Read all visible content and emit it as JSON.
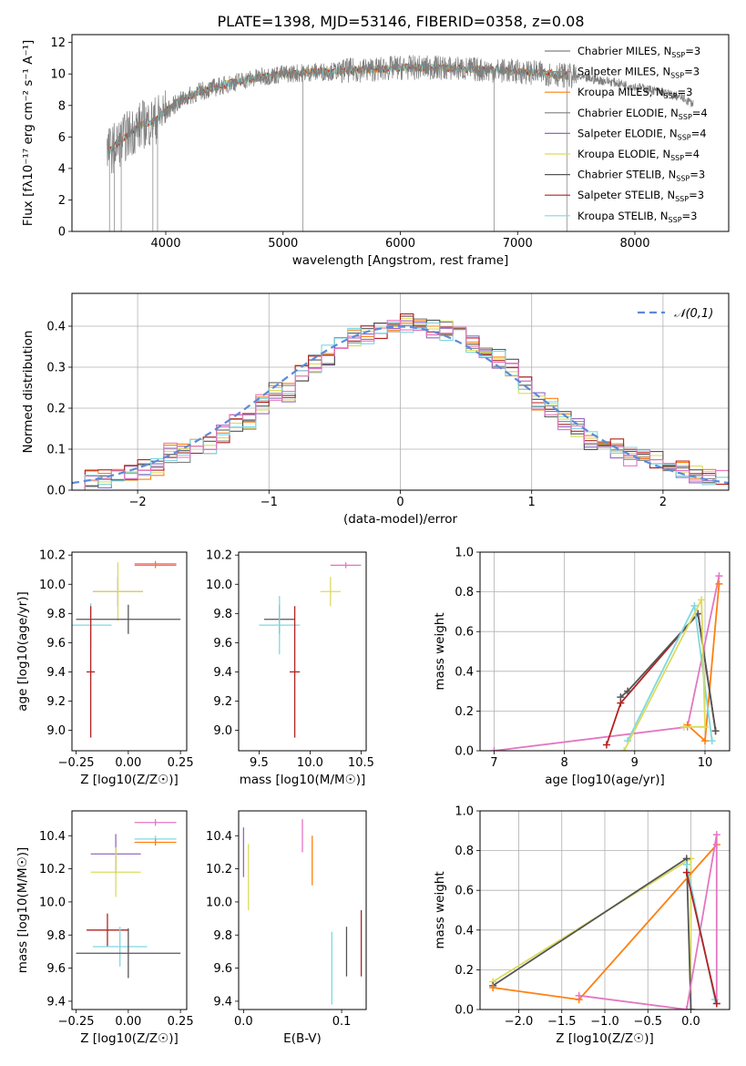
{
  "figure": {
    "title": "PLATE=1398, MJD=53146, FIBERID=0358, z=0.08"
  },
  "colors": {
    "Chabrier MILES": "#808080",
    "Salpeter MILES": "#8c8c8c",
    "Kroupa MILES": "#ff7f0e",
    "Chabrier ELODIE": "#7f7f7f",
    "Salpeter ELODIE": "#9467bd",
    "Kroupa ELODIE": "#dbdb5d",
    "Chabrier STELIB": "#555555",
    "Salpeter STELIB": "#b22222",
    "Kroupa STELIB": "#7fd8e0",
    "Pink": "#e377c2",
    "Gauss": "#5b8bd9"
  },
  "chart_data": [
    {
      "type": "line",
      "title": "PLATE=1398, MJD=53146, FIBERID=0358, z=0.08",
      "xlabel": "wavelength [Angstrom, rest frame]",
      "ylabel": "Flux [fλ10⁻¹⁷ erg cm⁻² s⁻¹ A⁻¹]",
      "xlim": [
        3200,
        8800
      ],
      "ylim": [
        0,
        12.5
      ],
      "xticks": [
        "4000",
        "5000",
        "6000",
        "7000",
        "8000"
      ],
      "yticks": [
        "0",
        "2",
        "4",
        "6",
        "8",
        "10",
        "12"
      ],
      "grid": false,
      "legend_position": "right",
      "continuum_x": [
        3500,
        3600,
        3700,
        3800,
        3900,
        4000,
        4100,
        4200,
        4300,
        4400,
        4600,
        4800,
        5000,
        5200,
        5500,
        5800,
        6000,
        6300,
        6600,
        6900,
        7100,
        7300,
        7420,
        7600,
        7800,
        8000,
        8200,
        8400,
        8500
      ],
      "continuum_y": [
        5.0,
        5.6,
        6.3,
        6.8,
        7.0,
        7.6,
        8.2,
        8.6,
        8.9,
        9.1,
        9.5,
        9.8,
        10.0,
        10.1,
        10.2,
        10.3,
        10.4,
        10.4,
        10.3,
        10.2,
        10.1,
        10.0,
        9.9,
        9.7,
        9.5,
        9.2,
        8.9,
        8.5,
        8.1
      ],
      "series": [
        {
          "name": "Chabrier MILES, N_SSP=3"
        },
        {
          "name": "Salpeter MILES, N_SSP=3"
        },
        {
          "name": "Kroupa MILES, N_SSP=3"
        },
        {
          "name": "Chabrier ELODIE, N_SSP=4"
        },
        {
          "name": "Salpeter ELODIE, N_SSP=4"
        },
        {
          "name": "Kroupa ELODIE, N_SSP=4"
        },
        {
          "name": "Chabrier STELIB, N_SSP=3"
        },
        {
          "name": "Salpeter STELIB, N_SSP=3"
        },
        {
          "name": "Kroupa STELIB, N_SSP=3"
        }
      ]
    },
    {
      "type": "bar",
      "xlabel": "(data-model)/error",
      "ylabel": "Normed distribution",
      "xlim": [
        -2.5,
        2.5
      ],
      "ylim": [
        0,
        0.48
      ],
      "xticks": [
        "−2",
        "−1",
        "0",
        "1",
        "2"
      ],
      "yticks": [
        "0.0",
        "0.1",
        "0.2",
        "0.3",
        "0.4"
      ],
      "grid": true,
      "legend_position": "top-right",
      "bin_edges": [
        -2.5,
        -2.4,
        -2.3,
        -2.2,
        -2.1,
        -2.0,
        -1.9,
        -1.8,
        -1.7,
        -1.6,
        -1.5,
        -1.4,
        -1.3,
        -1.2,
        -1.1,
        -1.0,
        -0.9,
        -0.8,
        -0.7,
        -0.6,
        -0.5,
        -0.4,
        -0.3,
        -0.2,
        -0.1,
        0.0,
        0.1,
        0.2,
        0.3,
        0.4,
        0.5,
        0.6,
        0.7,
        0.8,
        0.9,
        1.0,
        1.1,
        1.2,
        1.3,
        1.4,
        1.5,
        1.6,
        1.7,
        1.8,
        1.9,
        2.0,
        2.1,
        2.2,
        2.3,
        2.4,
        2.5
      ],
      "histogram_values": [
        0.02,
        0.03,
        0.03,
        0.04,
        0.04,
        0.05,
        0.06,
        0.09,
        0.09,
        0.1,
        0.11,
        0.14,
        0.16,
        0.17,
        0.21,
        0.24,
        0.24,
        0.28,
        0.31,
        0.33,
        0.35,
        0.37,
        0.38,
        0.39,
        0.4,
        0.41,
        0.4,
        0.39,
        0.39,
        0.38,
        0.36,
        0.34,
        0.32,
        0.3,
        0.26,
        0.22,
        0.2,
        0.17,
        0.15,
        0.12,
        0.11,
        0.1,
        0.08,
        0.08,
        0.07,
        0.06,
        0.05,
        0.04,
        0.03,
        0.03
      ],
      "series": [
        {
          "name": "N(0,1)",
          "description": "Gaussian, mean 0, sigma 1"
        }
      ]
    },
    {
      "type": "scatter",
      "xlabel": "Z [log10(Z/Z☉)]",
      "ylabel": "age  [log10(age/yr)]",
      "xlim": [
        -0.27,
        0.28
      ],
      "ylim": [
        8.86,
        10.22
      ],
      "xticks": [
        "−0.25",
        "0.00",
        "0.25"
      ],
      "yticks": [
        "9.0",
        "9.2",
        "9.4",
        "9.6",
        "9.8",
        "10.0",
        "10.2"
      ],
      "points": [
        {
          "x": 0.13,
          "y": 10.14,
          "xerr": 0.1,
          "yerr": 0.02,
          "color": "Pink"
        },
        {
          "x": 0.13,
          "y": 10.13,
          "xerr": 0.1,
          "yerr": 0.02,
          "color": "Kroupa MILES"
        },
        {
          "x": -0.05,
          "y": 9.95,
          "xerr": 0.12,
          "yerr": 0.1,
          "color": "Salpeter ELODIE"
        },
        {
          "x": -0.05,
          "y": 9.95,
          "xerr": 0.12,
          "yerr": 0.2,
          "color": "Kroupa ELODIE"
        },
        {
          "x": 0.0,
          "y": 9.76,
          "xerr": 0.25,
          "yerr": 0.1,
          "color": "Chabrier STELIB"
        },
        {
          "x": -0.18,
          "y": 9.72,
          "xerr": 0.1,
          "yerr": 0.15,
          "color": "Kroupa STELIB"
        },
        {
          "x": -0.18,
          "y": 9.4,
          "xerr": 0.02,
          "yerr": 0.45,
          "color": "Salpeter STELIB"
        }
      ]
    },
    {
      "type": "scatter",
      "xlabel": "mass [log10(M/M☉)]",
      "ylabel": "",
      "xlim": [
        9.3,
        10.55
      ],
      "ylim": [
        8.86,
        10.22
      ],
      "xticks": [
        "9.5",
        "10.0",
        "10.5"
      ],
      "yticks": [
        "9.0",
        "9.2",
        "9.4",
        "9.6",
        "9.8",
        "10.0",
        "10.2"
      ],
      "points": [
        {
          "x": 10.35,
          "y": 10.13,
          "xerr": 0.15,
          "yerr": 0.02,
          "color": "Pink"
        },
        {
          "x": 10.2,
          "y": 9.95,
          "xerr": 0.1,
          "yerr": 0.1,
          "color": "Kroupa ELODIE"
        },
        {
          "x": 9.7,
          "y": 9.76,
          "xerr": 0.15,
          "yerr": 0.1,
          "color": "Chabrier STELIB"
        },
        {
          "x": 9.7,
          "y": 9.72,
          "xerr": 0.2,
          "yerr": 0.2,
          "color": "Kroupa STELIB"
        },
        {
          "x": 9.85,
          "y": 9.4,
          "xerr": 0.05,
          "yerr": 0.45,
          "color": "Salpeter STELIB"
        }
      ]
    },
    {
      "type": "line",
      "xlabel": "age  [log10(age/yr)]",
      "ylabel": "mass weight",
      "xlim": [
        6.8,
        10.35
      ],
      "ylim": [
        0,
        1.0
      ],
      "xticks": [
        "7",
        "8",
        "9",
        "10"
      ],
      "yticks": [
        "0.0",
        "0.2",
        "0.4",
        "0.6",
        "0.8",
        "1.0"
      ],
      "grid": true,
      "series": [
        {
          "color": "Pink",
          "x": [
            7.0,
            9.75,
            10.2
          ],
          "y": [
            0.0,
            0.12,
            0.88
          ]
        },
        {
          "color": "Kroupa MILES",
          "x": [
            9.75,
            10.0,
            10.2
          ],
          "y": [
            0.13,
            0.05,
            0.84
          ]
        },
        {
          "color": "Salpeter STELIB",
          "x": [
            8.6,
            8.8,
            9.9,
            10.15
          ],
          "y": [
            0.03,
            0.24,
            0.69,
            0.1
          ]
        },
        {
          "color": "Chabrier STELIB",
          "x": [
            8.8,
            8.9,
            9.9,
            10.15
          ],
          "y": [
            0.27,
            0.3,
            0.69,
            0.1
          ]
        },
        {
          "color": "Kroupa STELIB",
          "x": [
            8.9,
            9.85,
            10.1
          ],
          "y": [
            0.05,
            0.73,
            0.05
          ]
        },
        {
          "color": "Kroupa ELODIE",
          "x": [
            8.85,
            9.95,
            10.0,
            9.7
          ],
          "y": [
            0.0,
            0.76,
            0.12,
            0.12
          ]
        }
      ]
    },
    {
      "type": "scatter",
      "xlabel": "Z [log10(Z/Z☉)]",
      "ylabel": "mass [log10(M/M☉)]",
      "xlim": [
        -0.27,
        0.28
      ],
      "ylim": [
        9.35,
        10.55
      ],
      "xticks": [
        "−0.25",
        "0.00",
        "0.25"
      ],
      "yticks": [
        "9.4",
        "9.6",
        "9.8",
        "10.0",
        "10.2",
        "10.4"
      ],
      "points": [
        {
          "x": 0.13,
          "y": 10.48,
          "xerr": 0.1,
          "yerr": 0.02,
          "color": "Pink"
        },
        {
          "x": 0.13,
          "y": 10.38,
          "xerr": 0.1,
          "yerr": 0.02,
          "color": "Kroupa STELIB"
        },
        {
          "x": 0.13,
          "y": 10.36,
          "xerr": 0.1,
          "yerr": 0.02,
          "color": "Kroupa MILES"
        },
        {
          "x": -0.06,
          "y": 10.29,
          "xerr": 0.12,
          "yerr": 0.12,
          "color": "Salpeter ELODIE"
        },
        {
          "x": -0.06,
          "y": 10.18,
          "xerr": 0.12,
          "yerr": 0.15,
          "color": "Kroupa ELODIE"
        },
        {
          "x": -0.1,
          "y": 9.83,
          "xerr": 0.1,
          "yerr": 0.1,
          "color": "Salpeter STELIB"
        },
        {
          "x": -0.04,
          "y": 9.73,
          "xerr": 0.13,
          "yerr": 0.12,
          "color": "Kroupa STELIB"
        },
        {
          "x": 0.0,
          "y": 9.69,
          "xerr": 0.25,
          "yerr": 0.15,
          "color": "Chabrier STELIB"
        }
      ]
    },
    {
      "type": "scatter",
      "xlabel": "E(B-V)",
      "ylabel": "",
      "xlim": [
        -0.005,
        0.125
      ],
      "ylim": [
        9.35,
        10.55
      ],
      "xticks": [
        "0.0",
        "0.1"
      ],
      "yticks": [
        "9.4",
        "9.6",
        "9.8",
        "10.0",
        "10.2",
        "10.4"
      ],
      "points": [
        {
          "x": 0.0,
          "y": 10.3,
          "yerr": 0.15,
          "color": "Salpeter ELODIE"
        },
        {
          "x": 0.005,
          "y": 10.15,
          "yerr": 0.2,
          "color": "Kroupa ELODIE"
        },
        {
          "x": 0.06,
          "y": 10.4,
          "yerr": 0.1,
          "color": "Pink"
        },
        {
          "x": 0.07,
          "y": 10.25,
          "yerr": 0.15,
          "color": "Kroupa MILES"
        },
        {
          "x": 0.09,
          "y": 9.6,
          "yerr": 0.22,
          "color": "Kroupa STELIB"
        },
        {
          "x": 0.105,
          "y": 9.7,
          "yerr": 0.15,
          "color": "Chabrier STELIB"
        },
        {
          "x": 0.12,
          "y": 9.75,
          "yerr": 0.2,
          "color": "Salpeter STELIB"
        }
      ]
    },
    {
      "type": "line",
      "xlabel": "Z [log10(Z/Z☉)]",
      "ylabel": "mass weight",
      "xlim": [
        -2.45,
        0.45
      ],
      "ylim": [
        0,
        1.0
      ],
      "xticks": [
        "−2.0",
        "−1.5",
        "−1.0",
        "−0.5",
        "0.0"
      ],
      "yticks": [
        "0.0",
        "0.2",
        "0.4",
        "0.6",
        "0.8",
        "1.0"
      ],
      "grid": true,
      "series": [
        {
          "color": "Kroupa ELODIE",
          "x": [
            -2.3,
            0.0,
            0.0
          ],
          "y": [
            0.14,
            0.76,
            0.0
          ]
        },
        {
          "color": "Chabrier STELIB",
          "x": [
            -2.3,
            -0.05,
            0.0
          ],
          "y": [
            0.12,
            0.76,
            0.0
          ]
        },
        {
          "color": "Kroupa MILES",
          "x": [
            -2.3,
            -1.3,
            0.3
          ],
          "y": [
            0.11,
            0.05,
            0.83
          ]
        },
        {
          "color": "Pink",
          "x": [
            -1.3,
            -0.05,
            0.3,
            0.3
          ],
          "y": [
            0.07,
            0.0,
            0.88,
            0.03
          ]
        },
        {
          "color": "Kroupa STELIB",
          "x": [
            -0.05,
            0.28
          ],
          "y": [
            0.73,
            0.05
          ]
        },
        {
          "color": "Salpeter STELIB",
          "x": [
            -0.05,
            0.3
          ],
          "y": [
            0.69,
            0.03
          ]
        }
      ]
    }
  ]
}
